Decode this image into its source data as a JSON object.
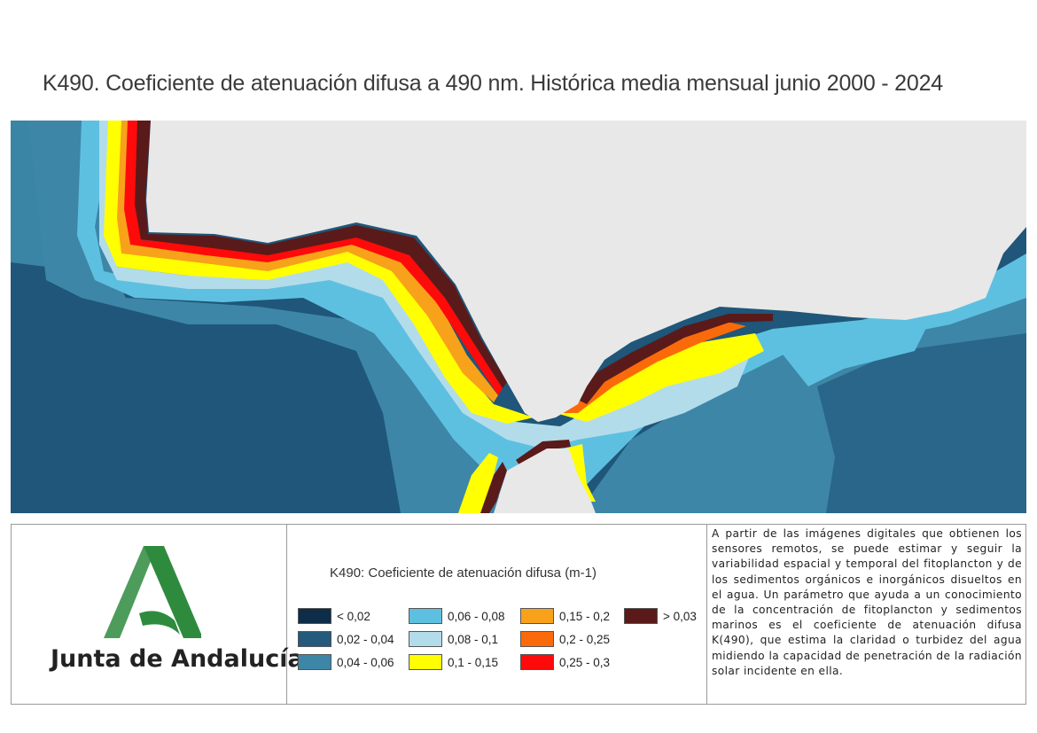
{
  "title": "K490. Coeficiente de atenuación difusa a 490 nm. Histórica media mensual junio 2000 - 2024",
  "map": {
    "land_color": "#e8e8e8",
    "deep_water_color": "#1e5578"
  },
  "logo": {
    "text": "Junta de Andalucía",
    "green": "#2e8b3e"
  },
  "legend": {
    "title": "K490: Coeficiente de atenuación difusa (m-1)",
    "items": [
      {
        "label": "< 0,02",
        "color": "#0d2d48"
      },
      {
        "label": "0,02 - 0,04",
        "color": "#245a7c"
      },
      {
        "label": "0,04 - 0,06",
        "color": "#3d86a8"
      },
      {
        "label": "0,06 - 0,08",
        "color": "#5ec0e0"
      },
      {
        "label": "0,08 - 0,1",
        "color": "#b3dcea"
      },
      {
        "label": "0,1 - 0,15",
        "color": "#ffff00"
      },
      {
        "label": "0,15 - 0,2",
        "color": "#f7a21a"
      },
      {
        "label": "0,2 - 0,25",
        "color": "#fb6a0a"
      },
      {
        "label": "0,25 - 0,3",
        "color": "#ff0a0a"
      },
      {
        "label": "> 0,03",
        "color": "#5a1a1a"
      }
    ]
  },
  "description": "A partir de las imágenes digitales que obtienen los sensores remotos, se puede estimar y seguir la variabilidad espacial y temporal del fitoplancton y de los sedimentos orgánicos e inorgánicos disueltos en el agua. Un parámetro que ayuda a un conocimiento de la concentración de fitoplancton y sedimentos marinos es el coeficiente de atenuación difusa K(490), que estima la claridad o turbidez del agua midiendo la capacidad de penetración de la radiación solar incidente en ella."
}
